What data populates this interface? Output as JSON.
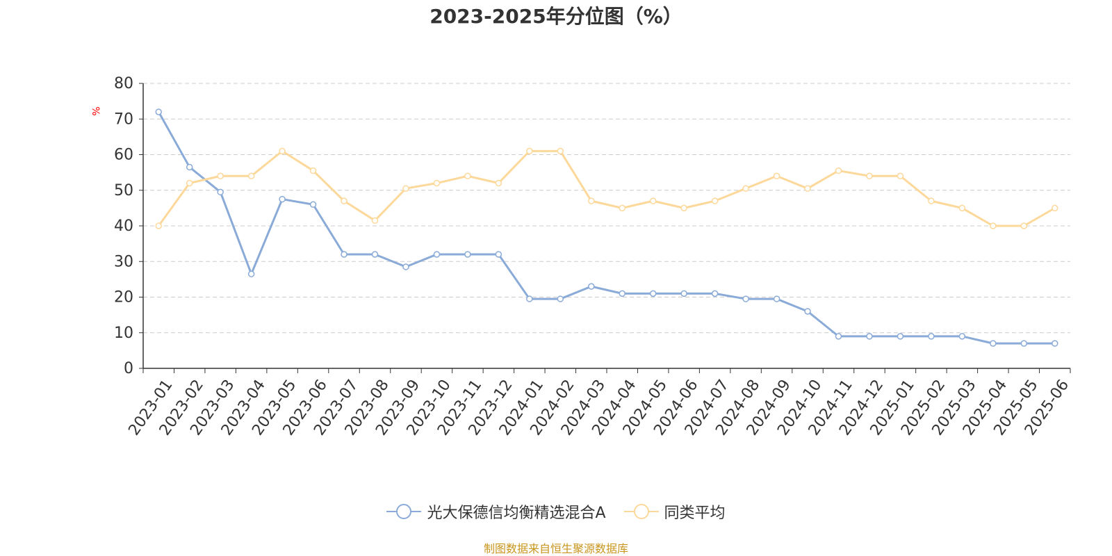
{
  "colors": {
    "series_fund": "#8aaad8",
    "series_avg": "#fcd89a",
    "axis": "#333333",
    "grid": "#cccccc",
    "unit": "#ff0000",
    "source": "#c8961e"
  },
  "chart_data": {
    "type": "line",
    "title": "2023-2025年分位图（%）",
    "ylabel": "%",
    "ylim": [
      0,
      80
    ],
    "yticks": [
      0,
      10,
      20,
      30,
      40,
      50,
      60,
      70,
      80
    ],
    "grid": true,
    "legend_position": "bottom",
    "categories": [
      "2023-01",
      "2023-02",
      "2023-03",
      "2023-04",
      "2023-05",
      "2023-06",
      "2023-07",
      "2023-08",
      "2023-09",
      "2023-10",
      "2023-11",
      "2023-12",
      "2024-01",
      "2024-02",
      "2024-03",
      "2024-04",
      "2024-05",
      "2024-06",
      "2024-07",
      "2024-08",
      "2024-09",
      "2024-10",
      "2024-11",
      "2024-12",
      "2025-01",
      "2025-02",
      "2025-03",
      "2025-04",
      "2025-05",
      "2025-06"
    ],
    "series": [
      {
        "name": "光大保德信均衡精选混合A",
        "color_key": "series_fund",
        "values": [
          72,
          56.5,
          49.5,
          26.5,
          47.5,
          46,
          32,
          32,
          28.5,
          32,
          32,
          32,
          19.5,
          19.5,
          23,
          21,
          21,
          21,
          21,
          19.5,
          19.5,
          16,
          9,
          9,
          9,
          9,
          9,
          7,
          7,
          7
        ]
      },
      {
        "name": "同类平均",
        "color_key": "series_avg",
        "values": [
          40,
          52,
          54,
          54,
          61,
          55.5,
          47,
          41.5,
          50.5,
          52,
          54,
          52,
          61,
          61,
          47,
          45,
          47,
          45,
          47,
          50.5,
          54,
          50.5,
          55.5,
          54,
          54,
          47,
          45,
          40,
          40,
          45
        ]
      }
    ]
  },
  "source_note": "制图数据来自恒生聚源数据库"
}
